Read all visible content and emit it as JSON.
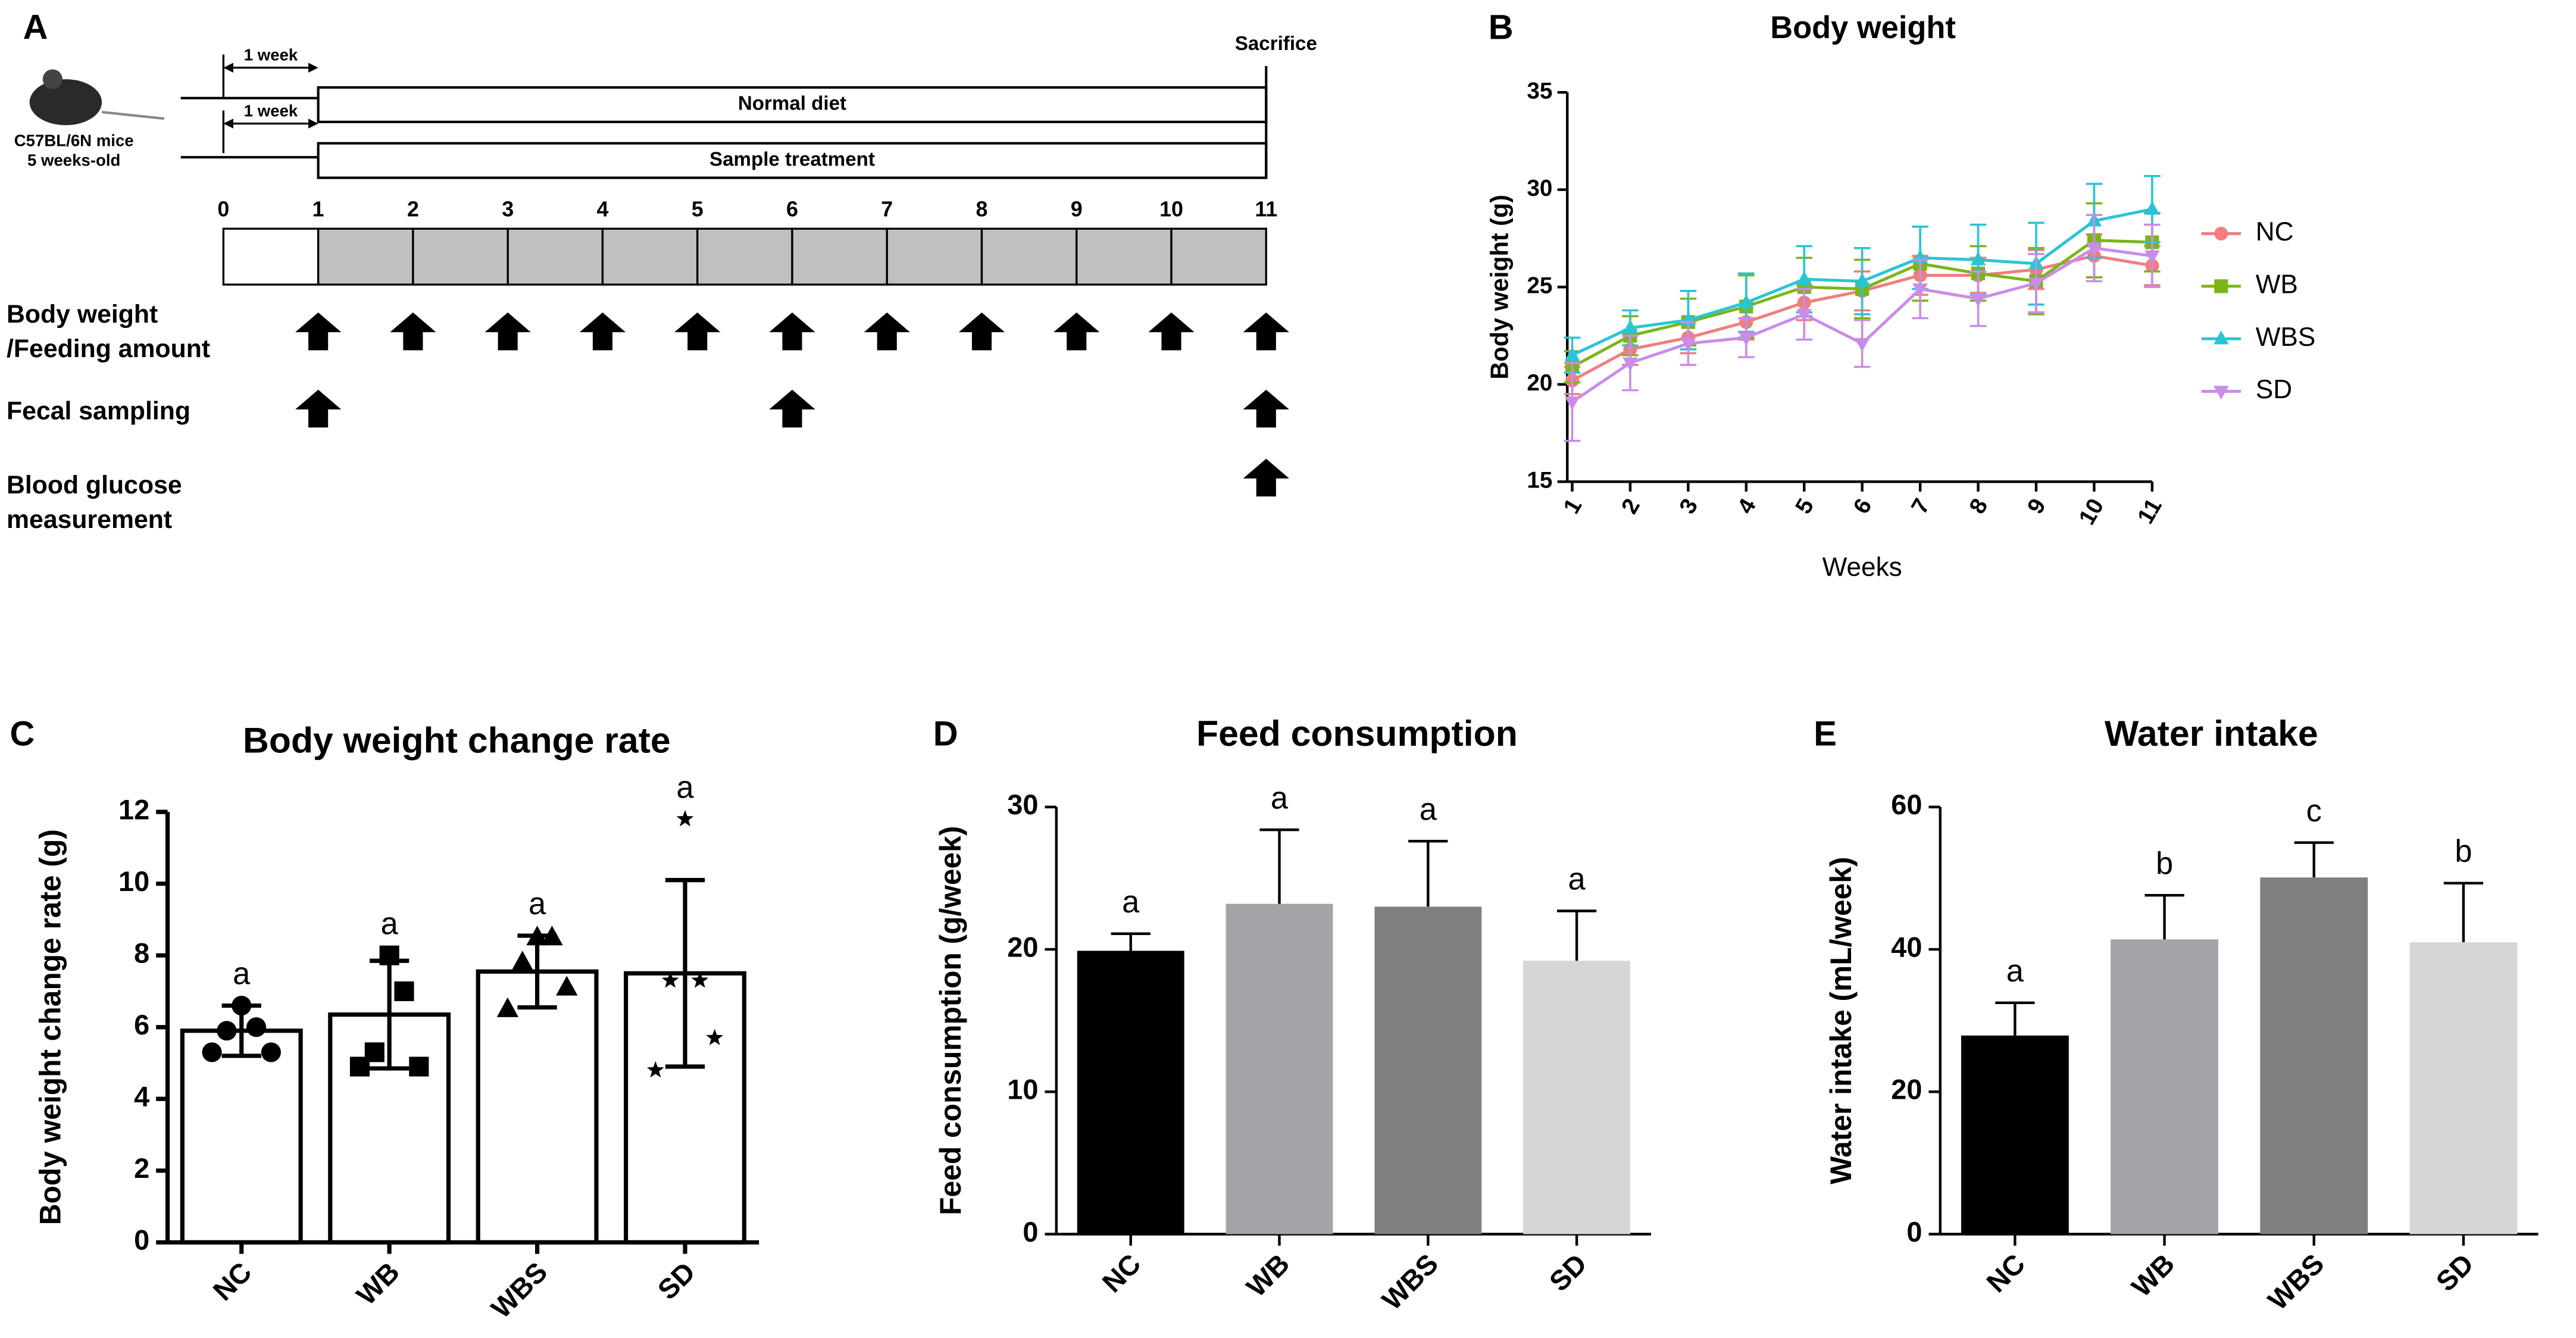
{
  "timeline": {
    "panel": "A",
    "subject": [
      "C57BL/6N mice",
      "5 weeks-old"
    ],
    "period_labels": [
      "1 week",
      "1 week"
    ],
    "bars": [
      "Normal diet",
      "Sample treatment"
    ],
    "end_label": "Sacrifice",
    "weeks": [
      0,
      1,
      2,
      3,
      4,
      5,
      6,
      7,
      8,
      9,
      10,
      11
    ],
    "rows": [
      {
        "label": [
          "Body weight",
          "/Feeding amount"
        ],
        "weeks": [
          1,
          2,
          3,
          4,
          5,
          6,
          7,
          8,
          9,
          10,
          11
        ]
      },
      {
        "label": [
          "Fecal sampling"
        ],
        "weeks": [
          1,
          6,
          11
        ]
      },
      {
        "label": [
          "Blood glucose",
          "measurement"
        ],
        "weeks": [
          11
        ]
      }
    ]
  },
  "chart_data": [
    {
      "type": "line",
      "panel": "B",
      "title": "Body weight",
      "xlabel": "Weeks",
      "ylabel": "Body weight (g)",
      "x": [
        1,
        2,
        3,
        4,
        5,
        6,
        7,
        8,
        9,
        10,
        11
      ],
      "xlim": [
        1,
        11
      ],
      "xticks": [
        1,
        2,
        3,
        4,
        5,
        6,
        7,
        8,
        9,
        10,
        11
      ],
      "ylim": [
        15,
        35
      ],
      "yticks": [
        15,
        20,
        25,
        30,
        35
      ],
      "series": [
        {
          "name": "NC",
          "color": "#f07e7e",
          "marker": "circle",
          "values": [
            20.2,
            21.8,
            22.4,
            23.2,
            24.2,
            24.8,
            25.6,
            25.6,
            25.9,
            26.6,
            26.1
          ],
          "errors": [
            0.7,
            0.8,
            0.8,
            0.9,
            0.9,
            1.0,
            1.0,
            0.9,
            1.0,
            1.1,
            1.0
          ]
        },
        {
          "name": "WB",
          "color": "#7cb518",
          "marker": "square",
          "values": [
            20.9,
            22.5,
            23.2,
            24.0,
            25.0,
            24.9,
            26.2,
            25.7,
            25.3,
            27.4,
            27.3
          ],
          "errors": [
            0.8,
            1.0,
            1.2,
            1.6,
            1.5,
            1.5,
            1.9,
            1.4,
            1.7,
            1.9,
            1.5
          ]
        },
        {
          "name": "WBS",
          "color": "#29c5d6",
          "marker": "triangle",
          "values": [
            21.5,
            22.9,
            23.3,
            24.2,
            25.4,
            25.3,
            26.5,
            26.4,
            26.2,
            28.4,
            29.0
          ],
          "errors": [
            0.9,
            0.9,
            1.5,
            1.5,
            1.7,
            1.7,
            1.6,
            1.8,
            2.1,
            1.9,
            1.7
          ]
        },
        {
          "name": "SD",
          "color": "#c98ce8",
          "marker": "triangle-down",
          "values": [
            19.1,
            21.1,
            22.1,
            22.4,
            23.6,
            22.1,
            24.9,
            24.4,
            25.2,
            27.0,
            26.6
          ],
          "errors": [
            2.0,
            1.4,
            1.1,
            1.0,
            1.3,
            1.2,
            1.5,
            1.4,
            1.5,
            1.7,
            1.6
          ]
        }
      ],
      "legend": "right"
    },
    {
      "type": "bar",
      "panel": "C",
      "title": "Body weight change rate",
      "ylabel": "Body weight change rate (g)",
      "categories": [
        "NC",
        "WB",
        "WBS",
        "SD"
      ],
      "values": [
        5.9,
        6.35,
        7.55,
        7.5
      ],
      "errors": [
        0.7,
        1.5,
        1.0,
        2.6
      ],
      "annotations": [
        "a",
        "a",
        "a",
        "a"
      ],
      "colors": [
        "#ffffff",
        "#ffffff",
        "#ffffff",
        "#ffffff"
      ],
      "points": [
        [
          6.6,
          6.0,
          5.9,
          5.3,
          5.3
        ],
        [
          8.0,
          7.0,
          5.3,
          4.9,
          4.9
        ],
        [
          8.5,
          8.5,
          7.8,
          7.1,
          6.5
        ],
        [
          11.8,
          7.3,
          7.3,
          5.7,
          4.8
        ]
      ],
      "markers": [
        "circle",
        "square",
        "triangle",
        "star"
      ],
      "ylim": [
        0,
        12
      ],
      "yticks": [
        0,
        2,
        4,
        6,
        8,
        10,
        12
      ]
    },
    {
      "type": "bar",
      "panel": "D",
      "title": "Feed consumption",
      "ylabel": "Feed consumption (g/week)",
      "categories": [
        "NC",
        "WB",
        "WBS",
        "SD"
      ],
      "values": [
        19.9,
        23.2,
        23.0,
        19.2
      ],
      "errors": [
        1.2,
        5.2,
        4.6,
        3.5
      ],
      "annotations": [
        "a",
        "a",
        "a",
        "a"
      ],
      "colors": [
        "#000000",
        "#a3a3a8",
        "#7f7f7f",
        "#d6d6d6"
      ],
      "ylim": [
        0,
        30
      ],
      "yticks": [
        0,
        10,
        20,
        30
      ]
    },
    {
      "type": "bar",
      "panel": "E",
      "title": "Water intake",
      "ylabel": "Water intake (mL/week)",
      "categories": [
        "NC",
        "WB",
        "WBS",
        "SD"
      ],
      "values": [
        27.9,
        41.4,
        50.1,
        41.0
      ],
      "errors": [
        4.6,
        6.2,
        4.9,
        8.3
      ],
      "annotations": [
        "a",
        "b",
        "c",
        "b"
      ],
      "colors": [
        "#000000",
        "#a3a3a8",
        "#7f7f7f",
        "#d6d6d6"
      ],
      "ylim": [
        0,
        60
      ],
      "yticks": [
        0,
        20,
        40,
        60
      ]
    }
  ]
}
